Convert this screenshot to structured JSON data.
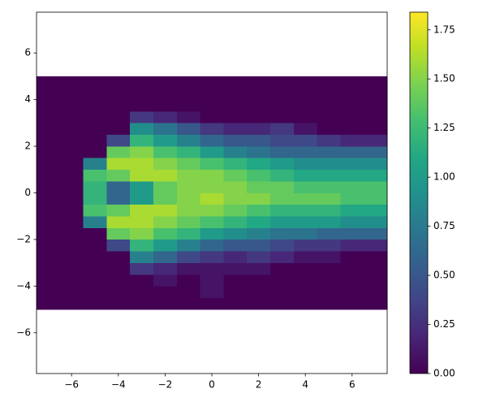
{
  "chart_data": {
    "type": "heatmap",
    "colormap": "viridis",
    "xlim": [
      -7.5,
      7.5
    ],
    "ylim": [
      -7.75,
      7.75
    ],
    "xticks": [
      {
        "value": -6,
        "label": "−6"
      },
      {
        "value": -4,
        "label": "−4"
      },
      {
        "value": -2,
        "label": "−2"
      },
      0,
      2,
      4,
      6
    ],
    "yticks": [
      {
        "value": -6,
        "label": "−6"
      },
      {
        "value": -4,
        "label": "−4"
      },
      {
        "value": -2,
        "label": "−2"
      },
      0,
      2,
      4,
      6
    ],
    "clim": [
      0,
      1.84
    ],
    "cticks": [
      {
        "value": 0,
        "label": "0.00"
      },
      0.25,
      {
        "value": 0.5,
        "label": "0.50"
      },
      0.75,
      {
        "value": 1,
        "label": "1.00"
      },
      1.25,
      {
        "value": 1.5,
        "label": "1.50"
      },
      1.75
    ],
    "xedges": [
      -7.5,
      -6.5,
      -5.5,
      -4.5,
      -3.5,
      -2.5,
      -1.5,
      -0.5,
      0.5,
      1.5,
      2.5,
      3.5,
      4.5,
      5.5,
      6.5,
      7.5
    ],
    "yedges": [
      -5,
      -4.5,
      -4,
      -3.5,
      -3,
      -2.5,
      -2,
      -1.5,
      -1,
      -0.5,
      0,
      0.5,
      1,
      1.5,
      2,
      2.5,
      3,
      3.5,
      4,
      4.5,
      5
    ],
    "values": [
      [
        0,
        0,
        0,
        0,
        0,
        0,
        0,
        0,
        0,
        0,
        0,
        0,
        0,
        0,
        0
      ],
      [
        0,
        0,
        0,
        0,
        0,
        0,
        0,
        0.1,
        0,
        0,
        0,
        0,
        0,
        0,
        0
      ],
      [
        0,
        0,
        0,
        0,
        0,
        0.1,
        0,
        0.1,
        0,
        0,
        0,
        0,
        0,
        0,
        0
      ],
      [
        0,
        0,
        0,
        0,
        0.3,
        0.2,
        0.1,
        0.1,
        0.1,
        0.1,
        0,
        0,
        0,
        0,
        0
      ],
      [
        0,
        0,
        0,
        0,
        0.8,
        0.6,
        0.4,
        0.3,
        0.2,
        0.3,
        0.2,
        0.1,
        0.1,
        0,
        0
      ],
      [
        0,
        0,
        0,
        0.4,
        1.2,
        1.0,
        0.8,
        0.6,
        0.5,
        0.5,
        0.4,
        0.3,
        0.3,
        0.2,
        0.2
      ],
      [
        0,
        0,
        0,
        1.4,
        1.5,
        1.3,
        1.2,
        1.0,
        0.9,
        0.8,
        0.7,
        0.7,
        0.6,
        0.6,
        0.6
      ],
      [
        0,
        0,
        0.8,
        1.6,
        1.6,
        1.5,
        1.4,
        1.3,
        1.2,
        1.1,
        1.0,
        1.0,
        1.0,
        0.9,
        0.9
      ],
      [
        0,
        0,
        1.3,
        1.4,
        1.6,
        1.6,
        1.5,
        1.5,
        1.4,
        1.3,
        1.2,
        1.2,
        1.2,
        1.1,
        1.1
      ],
      [
        0,
        0,
        1.2,
        0.6,
        1.0,
        1.4,
        1.5,
        1.6,
        1.5,
        1.5,
        1.4,
        1.4,
        1.4,
        1.3,
        1.3
      ],
      [
        0,
        0,
        1.2,
        0.6,
        1.0,
        1.4,
        1.5,
        1.5,
        1.5,
        1.4,
        1.4,
        1.3,
        1.3,
        1.3,
        1.3
      ],
      [
        0,
        0,
        1.3,
        1.4,
        1.6,
        1.6,
        1.5,
        1.5,
        1.4,
        1.3,
        1.2,
        1.1,
        1.1,
        1.1,
        1.1
      ],
      [
        0,
        0,
        0.8,
        1.6,
        1.6,
        1.5,
        1.4,
        1.3,
        1.2,
        1.1,
        1.0,
        0.9,
        0.9,
        0.9,
        0.9
      ],
      [
        0,
        0,
        0,
        1.4,
        1.5,
        1.3,
        1.2,
        1.0,
        0.8,
        0.7,
        0.6,
        0.6,
        0.6,
        0.6,
        0.6
      ],
      [
        0,
        0,
        0,
        0.4,
        1.2,
        1.0,
        0.8,
        0.6,
        0.5,
        0.5,
        0.4,
        0.4,
        0.3,
        0.2,
        0.2
      ],
      [
        0,
        0,
        0,
        0,
        0.9,
        0.7,
        0.5,
        0.3,
        0.2,
        0.2,
        0.3,
        0.1,
        0,
        0,
        0
      ],
      [
        0,
        0,
        0,
        0,
        0.3,
        0.2,
        0.1,
        0,
        0,
        0,
        0,
        0,
        0,
        0,
        0
      ],
      [
        0,
        0,
        0,
        0,
        0,
        0,
        0,
        0,
        0,
        0,
        0,
        0,
        0,
        0,
        0
      ],
      [
        0,
        0,
        0,
        0,
        0,
        0,
        0,
        0,
        0,
        0,
        0,
        0,
        0,
        0,
        0
      ],
      [
        0,
        0,
        0,
        0,
        0,
        0,
        0,
        0,
        0,
        0,
        0,
        0,
        0,
        0,
        0
      ]
    ]
  }
}
